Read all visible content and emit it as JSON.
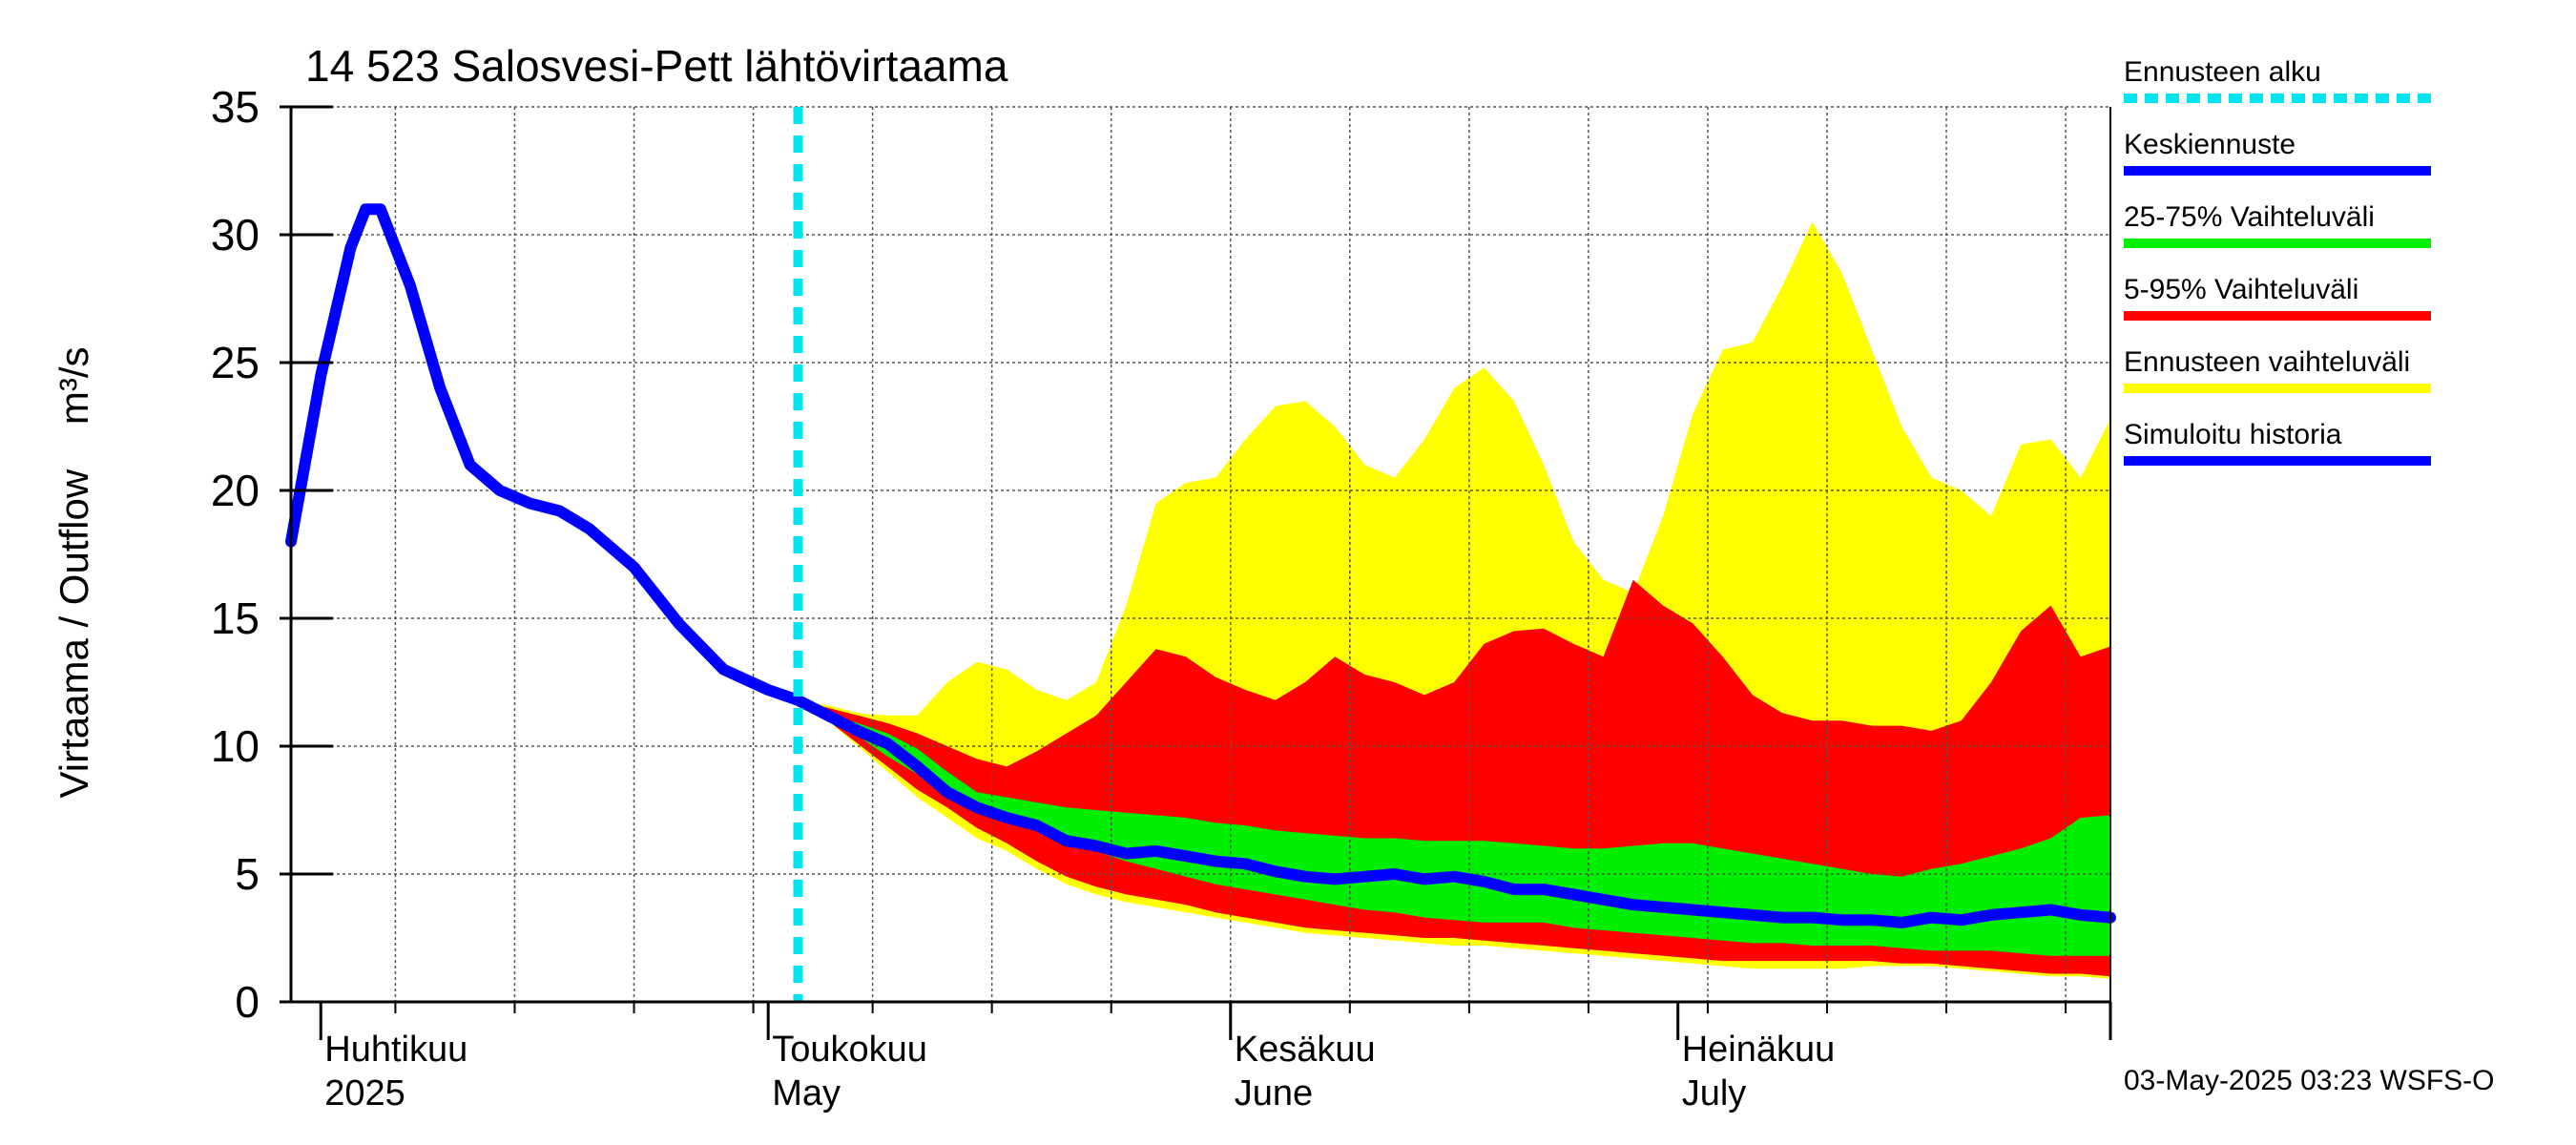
{
  "chart_data": {
    "type": "area",
    "title": "14 523 Salosvesi-Pett lähtövirtaama",
    "ylabel": "Virtaama / Outflow    m³/s",
    "ylim": [
      0,
      35
    ],
    "y_ticks": [
      0,
      5,
      10,
      15,
      20,
      25,
      30,
      35
    ],
    "x_range": [
      "2025-03-30",
      "2025-07-30"
    ],
    "month_labels": [
      {
        "date": "2025-04-01",
        "fi": "Huhtikuu",
        "en": "2025"
      },
      {
        "date": "2025-05-01",
        "fi": "Toukokuu",
        "en": "May"
      },
      {
        "date": "2025-06-01",
        "fi": "Kesäkuu",
        "en": "June"
      },
      {
        "date": "2025-07-01",
        "fi": "Heinäkuu",
        "en": "July"
      }
    ],
    "grid": true,
    "forecast_start": "2025-05-03",
    "legend_position": "right",
    "legend": [
      {
        "label": "Ennusteen alku",
        "color": "#00e5ee",
        "style": "dashed"
      },
      {
        "label": "Keskiennuste",
        "color": "#0000ff",
        "style": "solid"
      },
      {
        "label": "25-75% Vaihteluväli",
        "color": "#00ee00",
        "style": "solid"
      },
      {
        "label": "5-95% Vaihteluväli",
        "color": "#ff0000",
        "style": "solid"
      },
      {
        "label": "Ennusteen vaihteluväli",
        "color": "#ffff00",
        "style": "solid"
      },
      {
        "label": "Simuloitu historia",
        "color": "#0000ff",
        "style": "solid"
      }
    ],
    "footer": "03-May-2025 03:23 WSFS-O",
    "colors": {
      "forecast_start": "#00e5ee",
      "mean": "#0000ff",
      "band_25_75": "#00ee00",
      "band_5_95": "#ff0000",
      "band_full": "#ffff00",
      "history": "#0000ff"
    },
    "series": {
      "history": {
        "x": [
          "2025-03-30",
          "2025-04-01",
          "2025-04-03",
          "2025-04-04",
          "2025-04-05",
          "2025-04-07",
          "2025-04-09",
          "2025-04-11",
          "2025-04-13",
          "2025-04-15",
          "2025-04-17",
          "2025-04-19",
          "2025-04-22",
          "2025-04-25",
          "2025-04-28",
          "2025-05-01",
          "2025-05-03"
        ],
        "y": [
          18.0,
          24.5,
          29.5,
          31.0,
          31.0,
          28.0,
          24.0,
          21.0,
          20.0,
          19.5,
          19.2,
          18.5,
          17.0,
          14.8,
          13.0,
          12.2,
          11.8
        ]
      },
      "forecast_x": [
        "2025-05-03",
        "2025-05-05",
        "2025-05-07",
        "2025-05-09",
        "2025-05-11",
        "2025-05-13",
        "2025-05-15",
        "2025-05-17",
        "2025-05-19",
        "2025-05-21",
        "2025-05-23",
        "2025-05-25",
        "2025-05-27",
        "2025-05-29",
        "2025-05-31",
        "2025-06-02",
        "2025-06-04",
        "2025-06-06",
        "2025-06-08",
        "2025-06-10",
        "2025-06-12",
        "2025-06-14",
        "2025-06-16",
        "2025-06-18",
        "2025-06-20",
        "2025-06-22",
        "2025-06-24",
        "2025-06-26",
        "2025-06-28",
        "2025-06-30",
        "2025-07-02",
        "2025-07-04",
        "2025-07-06",
        "2025-07-08",
        "2025-07-10",
        "2025-07-12",
        "2025-07-14",
        "2025-07-16",
        "2025-07-18",
        "2025-07-20",
        "2025-07-22",
        "2025-07-24",
        "2025-07-26",
        "2025-07-28",
        "2025-07-30"
      ],
      "mean": [
        11.8,
        11.2,
        10.6,
        10.1,
        9.2,
        8.2,
        7.6,
        7.2,
        6.9,
        6.3,
        6.1,
        5.8,
        5.9,
        5.7,
        5.5,
        5.4,
        5.1,
        4.9,
        4.8,
        4.9,
        5.0,
        4.8,
        4.9,
        4.7,
        4.4,
        4.4,
        4.2,
        4.0,
        3.8,
        3.7,
        3.6,
        3.5,
        3.4,
        3.3,
        3.3,
        3.2,
        3.2,
        3.1,
        3.3,
        3.2,
        3.4,
        3.5,
        3.6,
        3.4,
        3.3
      ],
      "full_low": [
        11.8,
        11.0,
        10.0,
        9.0,
        8.0,
        7.2,
        6.4,
        5.9,
        5.2,
        4.6,
        4.2,
        3.9,
        3.7,
        3.5,
        3.3,
        3.1,
        2.9,
        2.7,
        2.6,
        2.5,
        2.4,
        2.3,
        2.2,
        2.2,
        2.1,
        2.0,
        1.9,
        1.8,
        1.7,
        1.6,
        1.5,
        1.4,
        1.3,
        1.3,
        1.3,
        1.3,
        1.4,
        1.4,
        1.4,
        1.3,
        1.2,
        1.1,
        1.0,
        1.0,
        0.9
      ],
      "p05": [
        11.8,
        11.0,
        10.1,
        9.2,
        8.3,
        7.6,
        6.8,
        6.2,
        5.5,
        4.9,
        4.5,
        4.2,
        4.0,
        3.8,
        3.5,
        3.3,
        3.1,
        2.9,
        2.8,
        2.7,
        2.6,
        2.5,
        2.5,
        2.4,
        2.3,
        2.2,
        2.1,
        2.0,
        1.9,
        1.8,
        1.7,
        1.6,
        1.6,
        1.6,
        1.6,
        1.6,
        1.6,
        1.5,
        1.5,
        1.4,
        1.3,
        1.2,
        1.1,
        1.1,
        1.0
      ],
      "p25": [
        11.8,
        11.1,
        10.4,
        9.6,
        8.9,
        8.1,
        7.6,
        7.2,
        6.8,
        6.3,
        5.9,
        5.5,
        5.2,
        4.9,
        4.6,
        4.4,
        4.2,
        4.0,
        3.8,
        3.6,
        3.5,
        3.3,
        3.2,
        3.1,
        3.1,
        3.1,
        2.9,
        2.8,
        2.7,
        2.6,
        2.5,
        2.4,
        2.3,
        2.3,
        2.2,
        2.2,
        2.2,
        2.1,
        2.0,
        2.0,
        2.0,
        1.9,
        1.8,
        1.8,
        1.8
      ],
      "p75": [
        11.8,
        11.3,
        10.9,
        10.5,
        9.9,
        9.0,
        8.2,
        8.0,
        7.8,
        7.6,
        7.5,
        7.4,
        7.3,
        7.2,
        7.0,
        6.9,
        6.7,
        6.6,
        6.5,
        6.4,
        6.4,
        6.3,
        6.3,
        6.3,
        6.2,
        6.1,
        6.0,
        6.0,
        6.1,
        6.2,
        6.2,
        6.0,
        5.8,
        5.6,
        5.4,
        5.2,
        5.0,
        4.9,
        5.2,
        5.4,
        5.7,
        6.0,
        6.4,
        7.2,
        7.3
      ],
      "p95": [
        11.8,
        11.5,
        11.2,
        10.9,
        10.5,
        10.0,
        9.5,
        9.2,
        9.8,
        10.5,
        11.2,
        12.5,
        13.8,
        13.5,
        12.7,
        12.2,
        11.8,
        12.5,
        13.5,
        12.8,
        12.5,
        12.0,
        12.5,
        14.0,
        14.5,
        14.6,
        14.0,
        13.5,
        16.5,
        15.5,
        14.8,
        13.5,
        12.0,
        11.3,
        11.0,
        11.0,
        10.8,
        10.8,
        10.6,
        11.0,
        12.5,
        14.5,
        15.5,
        13.5,
        13.9
      ],
      "full_high": [
        11.8,
        11.6,
        11.3,
        11.2,
        11.2,
        12.5,
        13.3,
        13.0,
        12.2,
        11.8,
        12.5,
        15.5,
        19.5,
        20.3,
        20.5,
        22.0,
        23.3,
        23.5,
        22.5,
        21.0,
        20.5,
        22.0,
        24.0,
        24.8,
        23.5,
        21.0,
        18.0,
        16.5,
        16.0,
        19.0,
        23.0,
        25.5,
        25.8,
        28.0,
        30.5,
        28.5,
        25.5,
        22.5,
        20.5,
        20.0,
        19.0,
        21.8,
        22.0,
        20.5,
        22.8
      ]
    }
  }
}
